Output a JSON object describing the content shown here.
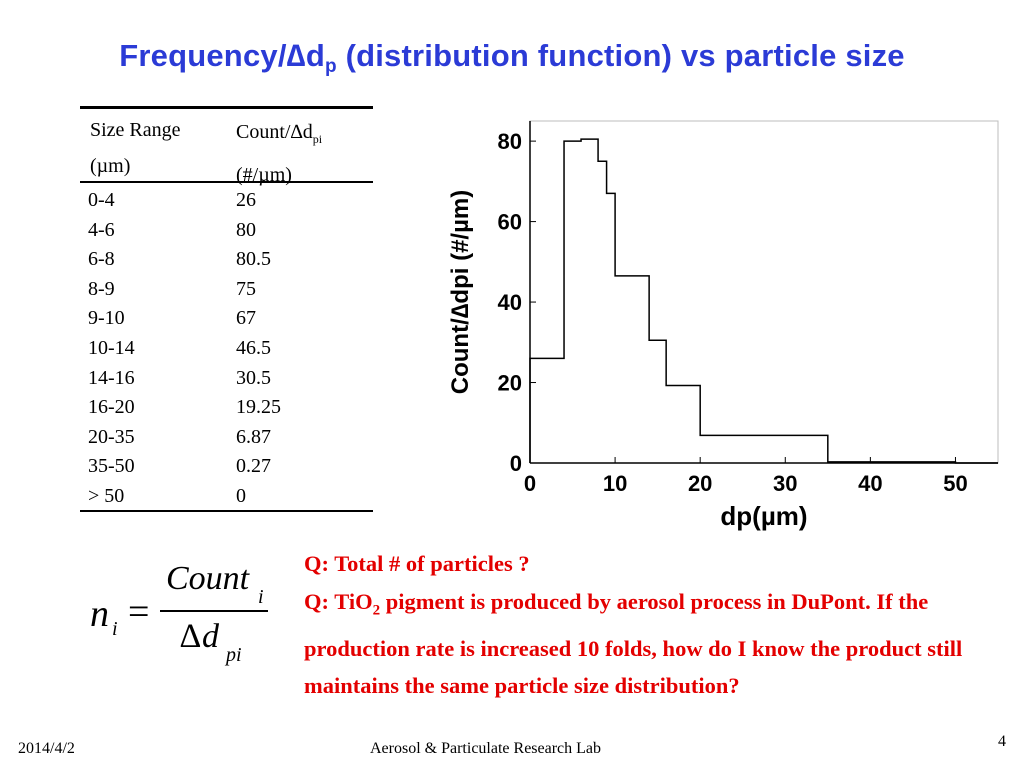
{
  "title": {
    "part1": "Frequency/",
    "delta": "∆",
    "d": "d",
    "sub_p": "p",
    "part2": " (distribution function) vs particle size"
  },
  "table": {
    "header_size_line1": "Size Range",
    "header_size_line2": "(µm)",
    "header_count_main": "Count/∆d",
    "header_count_sub": "pi",
    "header_count_line2": "(#/µm)",
    "rows": [
      {
        "range": "0-4",
        "value": "26"
      },
      {
        "range": "4-6",
        "value": "80"
      },
      {
        "range": "6-8",
        "value": "80.5"
      },
      {
        "range": "8-9",
        "value": "75"
      },
      {
        "range": "9-10",
        "value": "67"
      },
      {
        "range": "10-14",
        "value": "46.5"
      },
      {
        "range": "14-16",
        "value": "30.5"
      },
      {
        "range": "16-20",
        "value": "19.25"
      },
      {
        "range": "20-35",
        "value": "6.87"
      },
      {
        "range": "35-50",
        "value": "0.27"
      },
      {
        "range": "> 50",
        "value": "0"
      }
    ]
  },
  "chart_data": {
    "type": "line",
    "step": true,
    "series": [
      {
        "bins": [
          {
            "x0": 0,
            "x1": 4,
            "y": 26
          },
          {
            "x0": 4,
            "x1": 6,
            "y": 80
          },
          {
            "x0": 6,
            "x1": 8,
            "y": 80.5
          },
          {
            "x0": 8,
            "x1": 9,
            "y": 75
          },
          {
            "x0": 9,
            "x1": 10,
            "y": 67
          },
          {
            "x0": 10,
            "x1": 14,
            "y": 46.5
          },
          {
            "x0": 14,
            "x1": 16,
            "y": 30.5
          },
          {
            "x0": 16,
            "x1": 20,
            "y": 19.25
          },
          {
            "x0": 20,
            "x1": 35,
            "y": 6.87
          },
          {
            "x0": 35,
            "x1": 50,
            "y": 0.27
          },
          {
            "x0": 50,
            "x1": 55,
            "y": 0
          }
        ]
      }
    ],
    "xlim": [
      0,
      55
    ],
    "ylim": [
      0,
      85
    ],
    "xticks": [
      0,
      10,
      20,
      30,
      40,
      50
    ],
    "yticks": [
      0,
      20,
      40,
      60,
      80
    ],
    "xtick_labels": [
      "0",
      "10",
      "20",
      "30",
      "40",
      "50"
    ],
    "ytick_labels": [
      "0",
      "20",
      "40",
      "60",
      "80"
    ],
    "xlabel": "dp(µm)",
    "ylabel": "Count/∆dpi (#/µm)",
    "grid": false
  },
  "formula": {
    "lhs": "n",
    "lhs_sub": "i",
    "equals": "=",
    "numerator": "Count",
    "numerator_sub": "i",
    "denominator_delta": "∆",
    "denominator": "d",
    "denominator_sub": "pi"
  },
  "questions": {
    "q1": "Q: Total # of particles ?",
    "q2_part1": "Q: TiO",
    "q2_sub": "2",
    "q2_part2": " pigment is produced by aerosol process in DuPont.  If the production rate is increased 10 folds, how do I know the product still maintains the same particle size distribution?"
  },
  "footer": {
    "date": "2014/4/2",
    "lab": "Aerosol & Particulate Research Lab",
    "page": "4"
  },
  "colors": {
    "title": "#2b3bd6",
    "question": "#e30000",
    "text": "#000000"
  }
}
